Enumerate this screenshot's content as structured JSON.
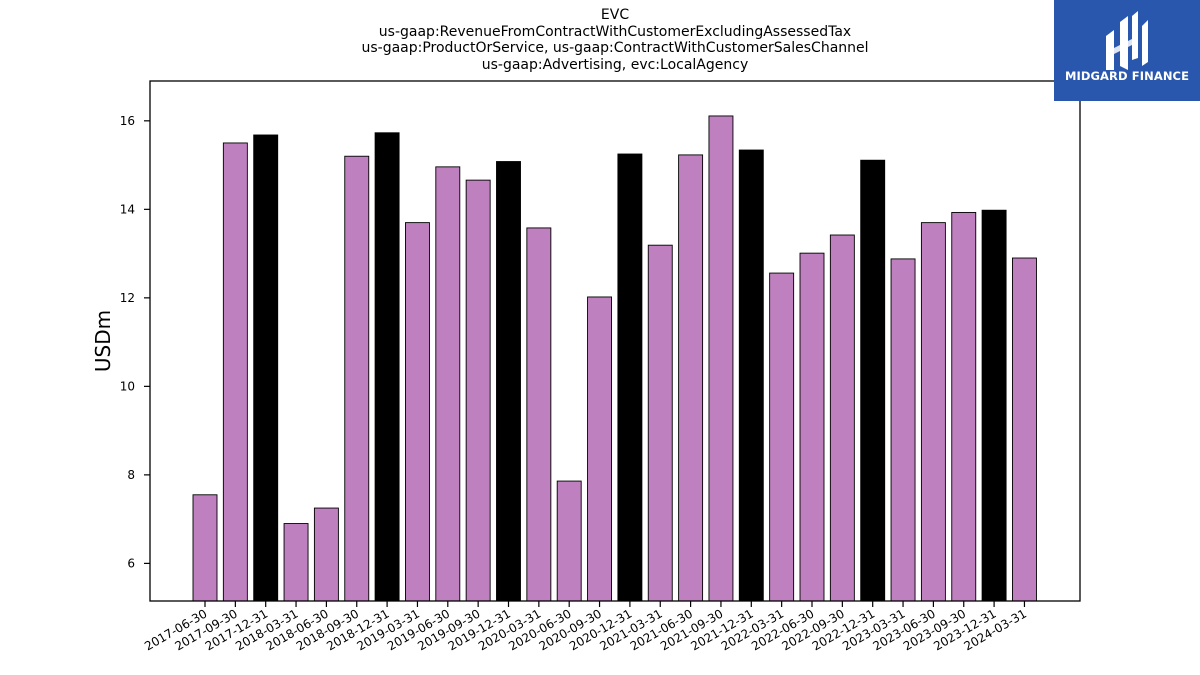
{
  "chart_data": {
    "type": "bar",
    "title_lines": [
      "EVC",
      "us-gaap:RevenueFromContractWithCustomerExcludingAssessedTax",
      "us-gaap:ProductOrService, us-gaap:ContractWithCustomerSalesChannel",
      "us-gaap:Advertising, evc:LocalAgency"
    ],
    "ylabel": "USDm",
    "xlabel": "",
    "ylim": [
      5.15,
      16.9
    ],
    "yticks": [
      6,
      8,
      10,
      12,
      14,
      16
    ],
    "categories": [
      "2017-06-30",
      "2017-09-30",
      "2017-12-31",
      "2018-03-31",
      "2018-06-30",
      "2018-09-30",
      "2018-12-31",
      "2019-03-31",
      "2019-06-30",
      "2019-09-30",
      "2019-12-31",
      "2020-03-31",
      "2020-06-30",
      "2020-09-30",
      "2020-12-31",
      "2021-03-31",
      "2021-06-30",
      "2021-09-30",
      "2021-12-31",
      "2022-03-31",
      "2022-06-30",
      "2022-09-30",
      "2022-12-31",
      "2023-03-31",
      "2023-06-30",
      "2023-09-30",
      "2023-12-31",
      "2024-03-31"
    ],
    "values": [
      7.55,
      15.5,
      15.68,
      6.9,
      7.25,
      15.2,
      15.73,
      13.7,
      14.96,
      14.66,
      15.08,
      13.58,
      7.86,
      12.02,
      15.25,
      13.19,
      15.23,
      16.11,
      15.34,
      12.56,
      13.01,
      13.42,
      15.11,
      12.88,
      13.7,
      13.93,
      13.98,
      12.9
    ],
    "highlight_indices": [
      2,
      6,
      10,
      14,
      18,
      22,
      26
    ],
    "colors": {
      "bar": "#bf80bf",
      "highlight": "#000000",
      "edge": "#000000"
    },
    "grid": false
  },
  "logo": {
    "text": "MIDGARD FINANCE",
    "bg": "#2a57ae"
  }
}
